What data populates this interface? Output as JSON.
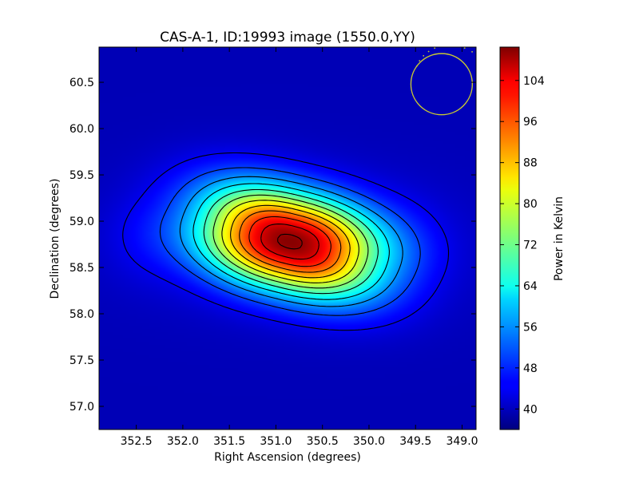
{
  "chart_data": {
    "type": "heatmap",
    "title": "CAS-A-1, ID:19993 image (1550.0,YY)",
    "xlabel": "Right Ascension (degrees)",
    "ylabel": "Declination (degrees)",
    "colorbar_label": "Power in Kelvin",
    "colormap": "jet",
    "xlim": [
      352.9,
      348.85
    ],
    "ylim": [
      56.75,
      60.88
    ],
    "clim": [
      36.0,
      110.5
    ],
    "x_ticks": [
      352.5,
      352.0,
      351.5,
      351.0,
      350.5,
      350.0,
      349.5,
      349.0
    ],
    "x_tick_labels": [
      "352.5",
      "352.0",
      "351.5",
      "351.0",
      "350.5",
      "350.0",
      "349.5",
      "349.0"
    ],
    "y_ticks": [
      57.0,
      57.5,
      58.0,
      58.5,
      59.0,
      59.5,
      60.0,
      60.5
    ],
    "y_tick_labels": [
      "57.0",
      "57.5",
      "58.0",
      "58.5",
      "59.0",
      "59.5",
      "60.0",
      "60.5"
    ],
    "colorbar_ticks": [
      40,
      48,
      56,
      64,
      72,
      80,
      88,
      96,
      104
    ],
    "colorbar_tick_labels": [
      "40",
      "48",
      "56",
      "64",
      "72",
      "80",
      "88",
      "96",
      "104"
    ],
    "peak": {
      "ra": 350.85,
      "dec": 58.78,
      "value": 110
    },
    "background_value": 40,
    "contour_levels": [
      44,
      50,
      56,
      62,
      68,
      74,
      80,
      86,
      92,
      98,
      104,
      109
    ],
    "grid": false,
    "beam_marker": {
      "ra_center": 349.22,
      "dec_center": 60.48,
      "radius_deg": 0.33,
      "color": "#c8c832"
    }
  }
}
